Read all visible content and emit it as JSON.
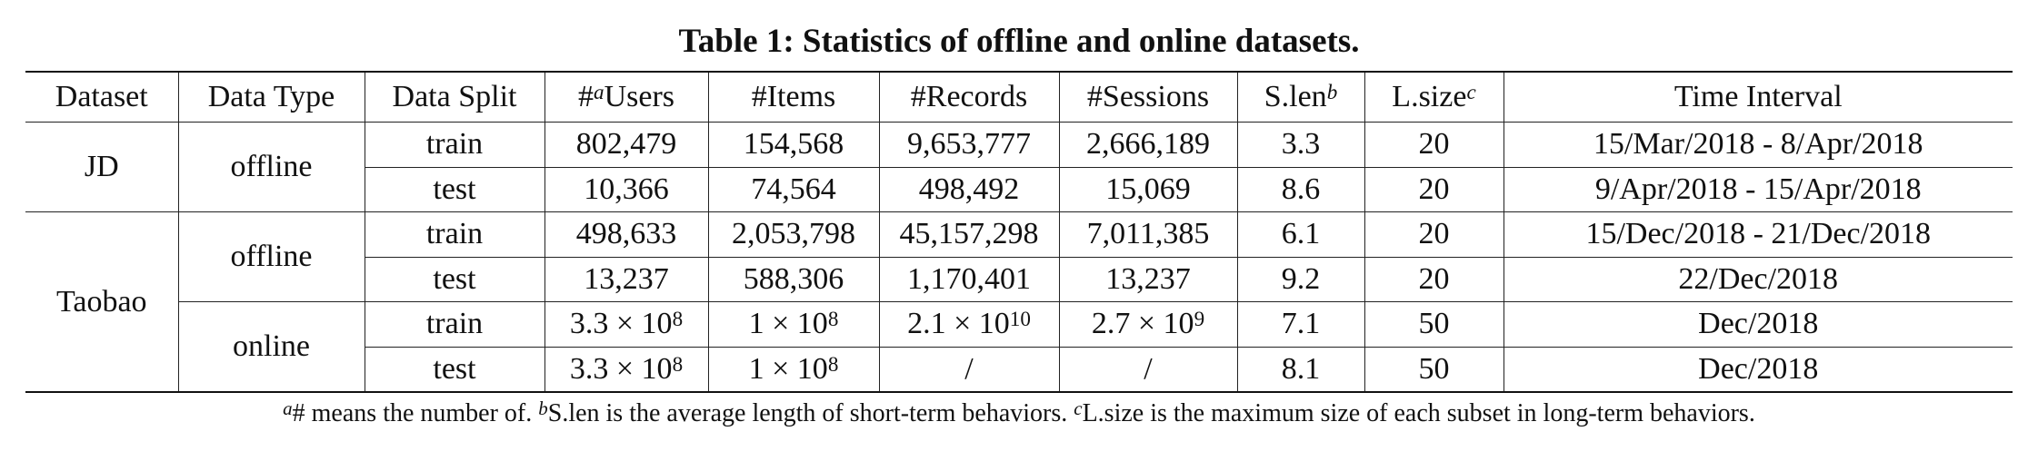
{
  "caption": "Table 1: Statistics of offline and online datasets.",
  "headers": {
    "dataset": "Dataset",
    "data_type": "Data Type",
    "data_split": "Data Split",
    "users_prefix": "#",
    "users_sup": "a",
    "users_suffix": "Users",
    "items": "#Items",
    "records": "#Records",
    "sessions": "#Sessions",
    "slen_main": "S.len",
    "slen_sup": "b",
    "lsize_main": "L.size",
    "lsize_sup": "c",
    "time": "Time Interval"
  },
  "groups": {
    "jd": "JD",
    "taobao": "Taobao",
    "offline": "offline",
    "online": "online"
  },
  "rows": [
    {
      "split": "train",
      "users": "802,479",
      "items": "154,568",
      "records": "9,653,777",
      "sessions": "2,666,189",
      "slen": "3.3",
      "lsize": "20",
      "time": "15/Mar/2018 - 8/Apr/2018"
    },
    {
      "split": "test",
      "users": "10,366",
      "items": "74,564",
      "records": "498,492",
      "sessions": "15,069",
      "slen": "8.6",
      "lsize": "20",
      "time": "9/Apr/2018 - 15/Apr/2018"
    },
    {
      "split": "train",
      "users": "498,633",
      "items": "2,053,798",
      "records": "45,157,298",
      "sessions": "7,011,385",
      "slen": "6.1",
      "lsize": "20",
      "time": "15/Dec/2018 - 21/Dec/2018"
    },
    {
      "split": "test",
      "users": "13,237",
      "items": "588,306",
      "records": "1,170,401",
      "sessions": "13,237",
      "slen": "9.2",
      "lsize": "20",
      "time": "22/Dec/2018"
    },
    {
      "split": "train",
      "users_base": "3.3 × 10",
      "users_exp": "8",
      "items_base": "1 × 10",
      "items_exp": "8",
      "records_base": "2.1 × 10",
      "records_exp": "10",
      "sessions_base": "2.7 × 10",
      "sessions_exp": "9",
      "slen": "7.1",
      "lsize": "50",
      "time": "Dec/2018"
    },
    {
      "split": "test",
      "users_base": "3.3 × 10",
      "users_exp": "8",
      "items_base": "1 × 10",
      "items_exp": "8",
      "records": "/",
      "sessions": "/",
      "slen": "8.1",
      "lsize": "50",
      "time": "Dec/2018"
    }
  ],
  "footnote": {
    "a_sup": "a",
    "a_text": "# means the number of. ",
    "b_sup": "b",
    "b_text": "S.len is the average length of short-term behaviors. ",
    "c_sup": "c",
    "c_text": "L.size is the maximum size of each subset in long-term behaviors."
  }
}
